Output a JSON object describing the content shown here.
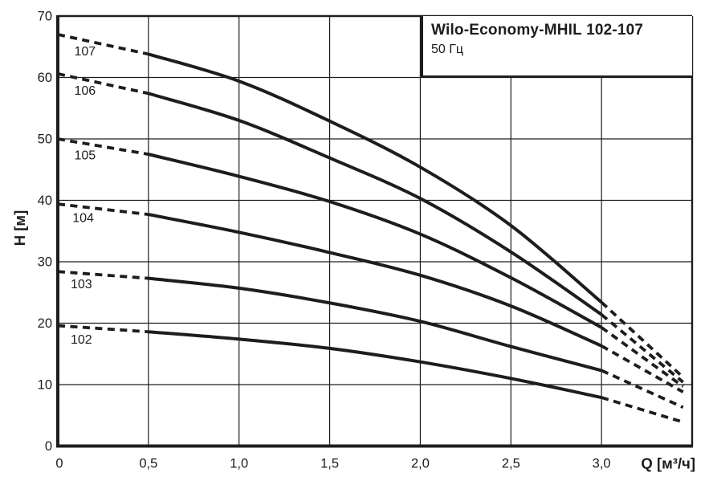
{
  "chart_data": {
    "type": "line",
    "title": "Wilo-Economy-MHIL 102-107",
    "subtitle": "50 Гц",
    "xlabel": "Q [м³/ч]",
    "ylabel": "H [м]",
    "xlim": [
      0,
      3.5
    ],
    "ylim": [
      0,
      70
    ],
    "x_ticks": [
      0,
      0.5,
      1.0,
      1.5,
      2.0,
      2.5,
      3.0
    ],
    "x_tick_labels": [
      "0",
      "0,5",
      "1,0",
      "1,5",
      "2,0",
      "2,5",
      "3,0"
    ],
    "y_ticks": [
      0,
      10,
      20,
      30,
      40,
      50,
      60,
      70
    ],
    "y_tick_labels": [
      "0",
      "10",
      "20",
      "30",
      "40",
      "50",
      "60",
      "70"
    ],
    "grid": true,
    "line_color": "#1d1d1b",
    "grid_color": "#1d1d1b",
    "background_color": "#ffffff",
    "legend_position": "top-right-box",
    "line_style_note": "dashed below Q=0.5 and above Q=3.0, solid between",
    "series": [
      {
        "name": "107",
        "label_q": 0.15,
        "label_h": 64.3,
        "dashed_head": [
          [
            0,
            67.0
          ],
          [
            0.5,
            63.8
          ]
        ],
        "solid": [
          [
            0.5,
            63.8
          ],
          [
            1.0,
            59.4
          ],
          [
            1.5,
            52.9
          ],
          [
            2.0,
            45.4
          ],
          [
            2.5,
            35.9
          ],
          [
            3.0,
            23.4
          ]
        ],
        "dashed_tail": [
          [
            3.0,
            23.4
          ],
          [
            3.45,
            11.2
          ]
        ]
      },
      {
        "name": "106",
        "label_q": 0.15,
        "label_h": 57.9,
        "dashed_head": [
          [
            0,
            60.6
          ],
          [
            0.5,
            57.4
          ]
        ],
        "solid": [
          [
            0.5,
            57.4
          ],
          [
            1.0,
            53.0
          ],
          [
            1.5,
            46.9
          ],
          [
            2.0,
            40.3
          ],
          [
            2.5,
            31.6
          ],
          [
            3.0,
            21.4
          ]
        ],
        "dashed_tail": [
          [
            3.0,
            21.4
          ],
          [
            3.45,
            10.4
          ]
        ]
      },
      {
        "name": "105",
        "label_q": 0.15,
        "label_h": 47.4,
        "dashed_head": [
          [
            0,
            50.0
          ],
          [
            0.5,
            47.5
          ]
        ],
        "solid": [
          [
            0.5,
            47.5
          ],
          [
            1.0,
            43.9
          ],
          [
            1.5,
            39.8
          ],
          [
            2.0,
            34.5
          ],
          [
            2.5,
            27.4
          ],
          [
            3.0,
            19.3
          ]
        ],
        "dashed_tail": [
          [
            3.0,
            19.3
          ],
          [
            3.45,
            9.7
          ]
        ]
      },
      {
        "name": "104",
        "label_q": 0.14,
        "label_h": 37.2,
        "dashed_head": [
          [
            0,
            39.4
          ],
          [
            0.5,
            37.7
          ]
        ],
        "solid": [
          [
            0.5,
            37.7
          ],
          [
            1.0,
            34.8
          ],
          [
            1.5,
            31.5
          ],
          [
            2.0,
            27.8
          ],
          [
            2.5,
            22.8
          ],
          [
            3.0,
            16.3
          ]
        ],
        "dashed_tail": [
          [
            3.0,
            16.3
          ],
          [
            3.45,
            8.8
          ]
        ]
      },
      {
        "name": "103",
        "label_q": 0.13,
        "label_h": 26.4,
        "dashed_head": [
          [
            0,
            28.4
          ],
          [
            0.5,
            27.3
          ]
        ],
        "solid": [
          [
            0.5,
            27.3
          ],
          [
            1.0,
            25.7
          ],
          [
            1.5,
            23.3
          ],
          [
            2.0,
            20.3
          ],
          [
            2.5,
            16.2
          ],
          [
            3.0,
            12.3
          ]
        ],
        "dashed_tail": [
          [
            3.0,
            12.3
          ],
          [
            3.45,
            6.3
          ]
        ]
      },
      {
        "name": "102",
        "label_q": 0.13,
        "label_h": 17.4,
        "dashed_head": [
          [
            0,
            19.6
          ],
          [
            0.5,
            18.6
          ]
        ],
        "solid": [
          [
            0.5,
            18.6
          ],
          [
            1.0,
            17.4
          ],
          [
            1.5,
            15.9
          ],
          [
            2.0,
            13.7
          ],
          [
            2.5,
            11.0
          ],
          [
            3.0,
            7.9
          ]
        ],
        "dashed_tail": [
          [
            3.0,
            7.9
          ],
          [
            3.45,
            3.9
          ]
        ]
      }
    ]
  }
}
